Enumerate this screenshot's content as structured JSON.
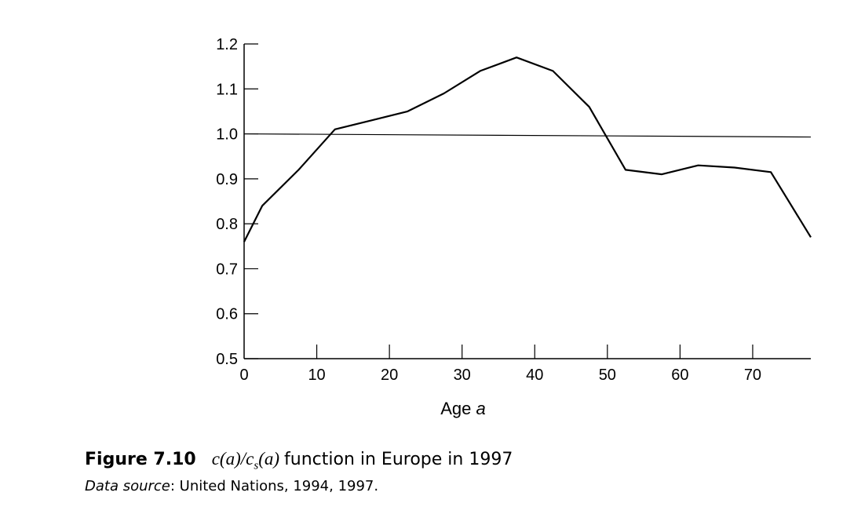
{
  "chart_data": {
    "type": "line",
    "xlabel_prefix": "Age ",
    "xlabel_var": "a",
    "xlim": [
      0,
      78
    ],
    "ylim": [
      0.5,
      1.2
    ],
    "x_ticks": [
      0,
      10,
      20,
      30,
      40,
      50,
      60,
      70
    ],
    "y_ticks": [
      0.5,
      0.6,
      0.7,
      0.8,
      0.9,
      1.0,
      1.1,
      1.2
    ],
    "y_tick_labels": [
      "0.5",
      "0.6",
      "0.7",
      "0.8",
      "0.9",
      "1.0",
      "1.1",
      "1.2"
    ],
    "reference_line": 1.0,
    "series": [
      {
        "x": [
          0,
          2.5,
          7.5,
          12.5,
          17.5,
          22.5,
          27.5,
          32.5,
          37.5,
          42.5,
          47.5,
          52.5,
          57.5,
          62.5,
          67.5,
          72.5,
          78
        ],
        "y": [
          0.76,
          0.84,
          0.92,
          1.01,
          1.03,
          1.05,
          1.09,
          1.14,
          1.17,
          1.14,
          1.06,
          0.92,
          0.91,
          0.93,
          0.925,
          0.915,
          0.77
        ]
      }
    ]
  },
  "caption": {
    "figure_number": "Figure 7.10",
    "formula": "c(a)/cs(a)",
    "text": "function in Europe in 1997"
  },
  "source": {
    "label": "Data source",
    "text": ": United Nations, 1994, 1997."
  }
}
